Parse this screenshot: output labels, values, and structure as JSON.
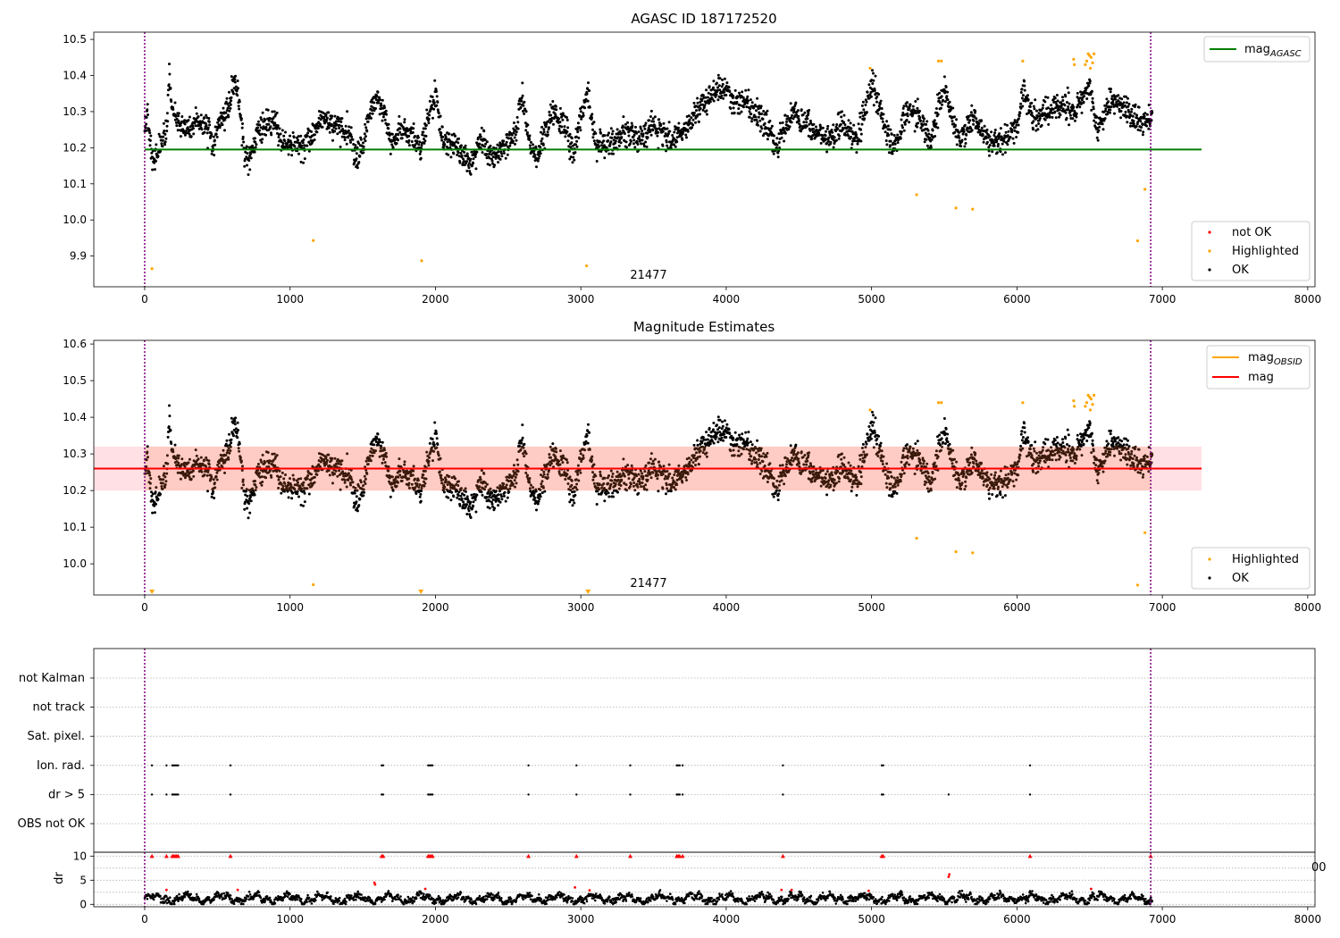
{
  "chart_data": [
    {
      "type": "scatter",
      "title": "AGASC ID 187172520",
      "annotation": "21477",
      "xlim": [
        -350,
        8050
      ],
      "ylim": [
        9.815,
        10.52
      ],
      "xticks": [
        0,
        1000,
        2000,
        3000,
        4000,
        5000,
        6000,
        7000,
        8000
      ],
      "yticks": [
        9.9,
        10.0,
        10.1,
        10.2,
        10.3,
        10.4,
        10.5
      ],
      "grid": false,
      "vlines": [
        0,
        6920
      ],
      "vline_color": "#800080",
      "lines": [
        {
          "name_main": "mag",
          "name_sub": "AGASC",
          "y": 10.195,
          "x_range": [
            0,
            7270
          ],
          "color": "#008000"
        }
      ],
      "legend_lines_position": "top-right",
      "legend_points_position": "bottom-right",
      "series": [
        {
          "name": "not OK",
          "color": "#ff0000",
          "points": []
        },
        {
          "name": "Highlighted",
          "color": "#ffa500",
          "points": [
            [
              50,
              9.865
            ],
            [
              1160,
              9.943
            ],
            [
              1905,
              9.887
            ],
            [
              3040,
              9.873
            ],
            [
              5310,
              10.07
            ],
            [
              5580,
              10.033
            ],
            [
              5695,
              10.03
            ],
            [
              6830,
              9.942
            ],
            [
              6880,
              10.085
            ],
            [
              4990,
              10.42
            ],
            [
              5460,
              10.44
            ],
            [
              5480,
              10.44
            ],
            [
              6040,
              10.44
            ],
            [
              6390,
              10.445
            ],
            [
              6395,
              10.43
            ],
            [
              6480,
              10.44
            ],
            [
              6490,
              10.46
            ],
            [
              6500,
              10.455
            ],
            [
              6510,
              10.45
            ],
            [
              6520,
              10.435
            ],
            [
              6530,
              10.46
            ],
            [
              6470,
              10.43
            ],
            [
              6505,
              10.42
            ]
          ]
        },
        {
          "name": "OK",
          "color": "#000000",
          "points": []
        }
      ],
      "ok_profile": [
        [
          0,
          10.25
        ],
        [
          20,
          10.3
        ],
        [
          50,
          10.17
        ],
        [
          100,
          10.2
        ],
        [
          150,
          10.25
        ],
        [
          170,
          10.38
        ],
        [
          190,
          10.3
        ],
        [
          230,
          10.27
        ],
        [
          300,
          10.25
        ],
        [
          400,
          10.27
        ],
        [
          450,
          10.24
        ],
        [
          470,
          10.2
        ],
        [
          520,
          10.28
        ],
        [
          560,
          10.3
        ],
        [
          620,
          10.38
        ],
        [
          650,
          10.33
        ],
        [
          690,
          10.17
        ],
        [
          720,
          10.16
        ],
        [
          780,
          10.25
        ],
        [
          900,
          10.27
        ],
        [
          950,
          10.2
        ],
        [
          1000,
          10.22
        ],
        [
          1100,
          10.2
        ],
        [
          1150,
          10.23
        ],
        [
          1200,
          10.28
        ],
        [
          1300,
          10.26
        ],
        [
          1400,
          10.25
        ],
        [
          1450,
          10.17
        ],
        [
          1500,
          10.2
        ],
        [
          1550,
          10.3
        ],
        [
          1600,
          10.34
        ],
        [
          1650,
          10.3
        ],
        [
          1700,
          10.2
        ],
        [
          1750,
          10.25
        ],
        [
          1850,
          10.24
        ],
        [
          1900,
          10.19
        ],
        [
          1950,
          10.28
        ],
        [
          2000,
          10.35
        ],
        [
          2050,
          10.22
        ],
        [
          2150,
          10.2
        ],
        [
          2250,
          10.15
        ],
        [
          2300,
          10.22
        ],
        [
          2400,
          10.17
        ],
        [
          2450,
          10.19
        ],
        [
          2550,
          10.24
        ],
        [
          2600,
          10.34
        ],
        [
          2650,
          10.2
        ],
        [
          2700,
          10.17
        ],
        [
          2800,
          10.3
        ],
        [
          2900,
          10.25
        ],
        [
          2950,
          10.18
        ],
        [
          3000,
          10.3
        ],
        [
          3050,
          10.35
        ],
        [
          3100,
          10.21
        ],
        [
          3200,
          10.2
        ],
        [
          3300,
          10.25
        ],
        [
          3400,
          10.22
        ],
        [
          3500,
          10.26
        ],
        [
          3650,
          10.22
        ],
        [
          3800,
          10.3
        ],
        [
          3950,
          10.37
        ],
        [
          4050,
          10.33
        ],
        [
          4150,
          10.32
        ],
        [
          4250,
          10.28
        ],
        [
          4350,
          10.2
        ],
        [
          4450,
          10.3
        ],
        [
          4600,
          10.25
        ],
        [
          4700,
          10.22
        ],
        [
          4800,
          10.26
        ],
        [
          4900,
          10.22
        ],
        [
          5000,
          10.38
        ],
        [
          5100,
          10.25
        ],
        [
          5150,
          10.2
        ],
        [
          5250,
          10.3
        ],
        [
          5350,
          10.28
        ],
        [
          5400,
          10.22
        ],
        [
          5500,
          10.36
        ],
        [
          5600,
          10.22
        ],
        [
          5700,
          10.28
        ],
        [
          5800,
          10.22
        ],
        [
          5900,
          10.22
        ],
        [
          6000,
          10.26
        ],
        [
          6050,
          10.37
        ],
        [
          6100,
          10.28
        ],
        [
          6200,
          10.3
        ],
        [
          6300,
          10.32
        ],
        [
          6400,
          10.3
        ],
        [
          6500,
          10.38
        ],
        [
          6550,
          10.25
        ],
        [
          6650,
          10.33
        ],
        [
          6750,
          10.3
        ],
        [
          6850,
          10.27
        ],
        [
          6930,
          10.28
        ]
      ]
    },
    {
      "type": "scatter",
      "title": "Magnitude Estimates",
      "annotation": "21477",
      "xlim": [
        -350,
        8050
      ],
      "ylim": [
        9.915,
        10.61
      ],
      "xticks": [
        0,
        1000,
        2000,
        3000,
        4000,
        5000,
        6000,
        7000,
        8000
      ],
      "yticks": [
        10.0,
        10.1,
        10.2,
        10.3,
        10.4,
        10.5,
        10.6
      ],
      "grid": false,
      "vlines": [
        0,
        6920
      ],
      "vline_color": "#800080",
      "band": {
        "y_range": [
          10.2,
          10.32
        ],
        "x_range": [
          -350,
          7270
        ],
        "color": "#ffb6c1",
        "opacity": 0.42
      },
      "lines": [
        {
          "name_main": "mag",
          "name_sub": "OBSID",
          "y": null,
          "color": "#ffa500"
        },
        {
          "name_main": "mag",
          "name_sub": "",
          "y": 10.26,
          "x_range": [
            -350,
            7270
          ],
          "color": "#ff0000"
        }
      ],
      "legend_lines_position": "top-right",
      "legend_points_position": "bottom-right",
      "clipped_markers": [
        50,
        1900,
        3050
      ],
      "series": [
        {
          "name": "Highlighted",
          "color": "#ffa500",
          "points": [
            [
              1160,
              9.943
            ],
            [
              5310,
              10.07
            ],
            [
              5580,
              10.033
            ],
            [
              5695,
              10.03
            ],
            [
              6830,
              9.942
            ],
            [
              6880,
              10.085
            ],
            [
              4990,
              10.42
            ],
            [
              5460,
              10.44
            ],
            [
              5480,
              10.44
            ],
            [
              6040,
              10.44
            ],
            [
              6390,
              10.445
            ],
            [
              6395,
              10.43
            ],
            [
              6480,
              10.44
            ],
            [
              6490,
              10.46
            ],
            [
              6500,
              10.455
            ],
            [
              6510,
              10.45
            ],
            [
              6520,
              10.435
            ],
            [
              6530,
              10.46
            ],
            [
              6470,
              10.43
            ],
            [
              6505,
              10.42
            ]
          ]
        },
        {
          "name": "OK",
          "color": "#000000",
          "points": []
        }
      ]
    },
    {
      "type": "scatter",
      "xlim": [
        -350,
        8050
      ],
      "categories": [
        "not Kalman",
        "not track",
        "Sat. pixel.",
        "Ion. rad.",
        "dr > 5",
        "OBS not OK"
      ],
      "flag_times": {
        "Ion. rad.": [
          50,
          150,
          190,
          200,
          210,
          220,
          230,
          590,
          1630,
          1640,
          1950,
          1960,
          1970,
          1980,
          2640,
          2970,
          3340,
          3660,
          3670,
          3680,
          3700,
          4390,
          5070,
          5080,
          6090
        ],
        "dr > 5": [
          50,
          150,
          190,
          200,
          210,
          220,
          230,
          590,
          1630,
          1640,
          1950,
          1960,
          1970,
          1980,
          2640,
          2970,
          3340,
          3660,
          3670,
          3680,
          3700,
          4390,
          5070,
          5080,
          5530,
          6090
        ]
      },
      "grid": true,
      "vlines": [
        0,
        6920
      ]
    },
    {
      "type": "scatter",
      "ylabel": "dr",
      "xlim": [
        -350,
        8050
      ],
      "ylim": [
        -0.5,
        10.8
      ],
      "xticks": [
        0,
        1000,
        2000,
        3000,
        4000,
        5000,
        6000,
        7000,
        8000
      ],
      "yticks": [
        0,
        5,
        10
      ],
      "stray_tick_text": "00",
      "grid": true,
      "vlines": [
        0,
        6920
      ],
      "series": [
        {
          "name": "dr > 5",
          "color": "#ff0000",
          "points": [
            [
              50,
              10
            ],
            [
              150,
              10
            ],
            [
              190,
              10
            ],
            [
              200,
              10
            ],
            [
              210,
              10
            ],
            [
              220,
              10
            ],
            [
              230,
              10
            ],
            [
              590,
              10
            ],
            [
              1630,
              10
            ],
            [
              1640,
              10
            ],
            [
              1950,
              10
            ],
            [
              1960,
              10
            ],
            [
              1970,
              10
            ],
            [
              1980,
              10
            ],
            [
              2640,
              10
            ],
            [
              2970,
              10
            ],
            [
              3340,
              10
            ],
            [
              3660,
              10
            ],
            [
              3670,
              10
            ],
            [
              3680,
              10
            ],
            [
              3700,
              10
            ],
            [
              4390,
              10
            ],
            [
              5070,
              10
            ],
            [
              5080,
              10
            ],
            [
              6090,
              10
            ],
            [
              6920,
              10
            ],
            [
              1580,
              4.5
            ],
            [
              1585,
              4.1
            ],
            [
              5530,
              5.7
            ],
            [
              5535,
              6.2
            ],
            [
              150,
              3.0
            ],
            [
              640,
              3.0
            ],
            [
              1930,
              3.2
            ],
            [
              2960,
              3.5
            ],
            [
              3060,
              2.9
            ],
            [
              4380,
              3.0
            ],
            [
              4450,
              3.0
            ],
            [
              4980,
              2.8
            ],
            [
              6510,
              3.2
            ]
          ]
        },
        {
          "name": "OK",
          "color": "#000000",
          "points": []
        }
      ]
    }
  ]
}
